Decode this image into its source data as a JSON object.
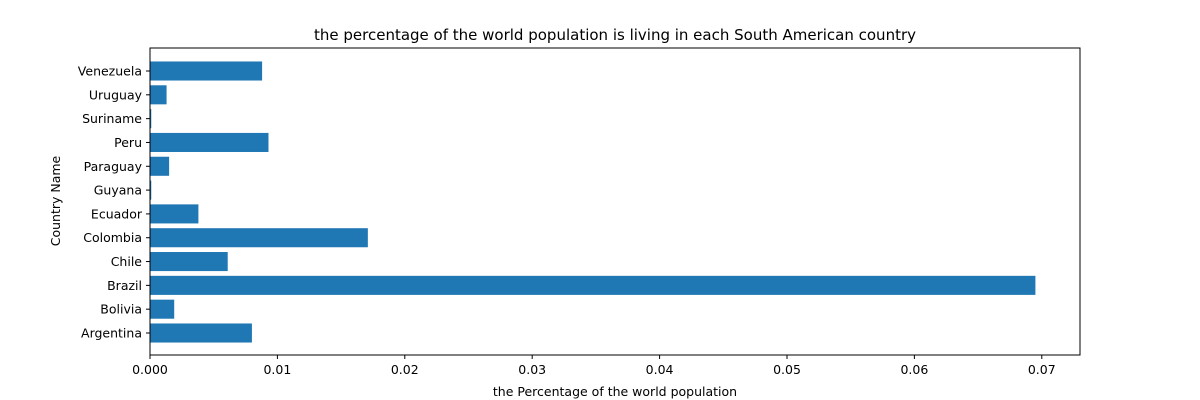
{
  "chart_data": {
    "type": "bar",
    "orientation": "horizontal",
    "title": "the percentage of the world population is living in each South American country",
    "xlabel": "the Percentage of the world population",
    "ylabel": "Country Name",
    "categories": [
      "Argentina",
      "Bolivia",
      "Brazil",
      "Chile",
      "Colombia",
      "Ecuador",
      "Guyana",
      "Paraguay",
      "Peru",
      "Suriname",
      "Uruguay",
      "Venezuela"
    ],
    "values": [
      0.008,
      0.0019,
      0.0695,
      0.0061,
      0.0171,
      0.0038,
      0.0001,
      0.0015,
      0.0093,
      0.0001,
      0.0013,
      0.0088
    ],
    "xlim": [
      0,
      0.073
    ],
    "xticks": [
      "0.000",
      "0.01",
      "0.02",
      "0.03",
      "0.04",
      "0.05",
      "0.06",
      "0.07"
    ],
    "xtick_values": [
      0,
      0.01,
      0.02,
      0.03,
      0.04,
      0.05,
      0.06,
      0.07
    ],
    "grid": false,
    "bar_color": "#1f77b4"
  }
}
